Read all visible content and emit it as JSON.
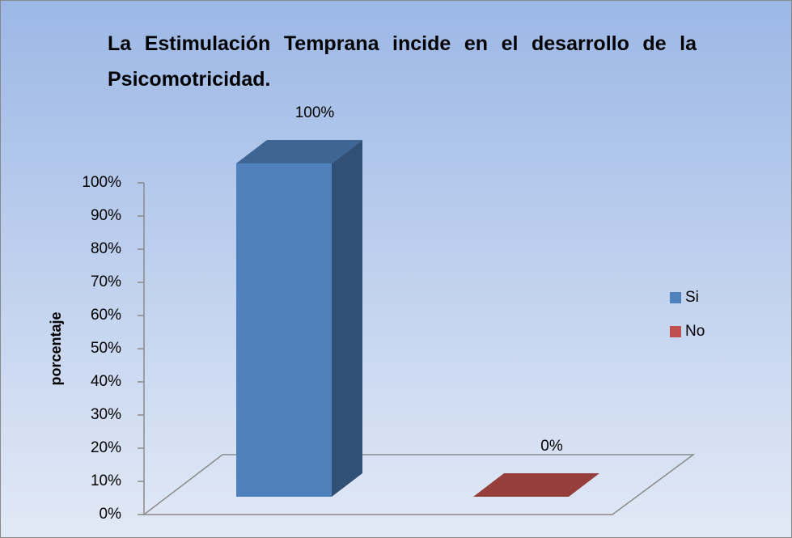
{
  "chart_data": {
    "type": "bar3d",
    "title": "La Estimulación Temprana incide en el desarrollo de la Psicomotricidad.",
    "ylabel": "porcentaje",
    "categories": [
      null
    ],
    "series": [
      {
        "name": "Si",
        "color": "#4f81bd",
        "values": [
          100
        ],
        "value_labels": [
          "100%"
        ]
      },
      {
        "name": "No",
        "color": "#c0504d",
        "values": [
          0
        ],
        "value_labels": [
          "0%"
        ]
      }
    ],
    "ylim": [
      0,
      100
    ],
    "yticks": [
      {
        "value": 0,
        "label": "0%"
      },
      {
        "value": 10,
        "label": "10%"
      },
      {
        "value": 20,
        "label": "20%"
      },
      {
        "value": 30,
        "label": "30%"
      },
      {
        "value": 40,
        "label": "40%"
      },
      {
        "value": 50,
        "label": "50%"
      },
      {
        "value": 60,
        "label": "60%"
      },
      {
        "value": 70,
        "label": "70%"
      },
      {
        "value": 80,
        "label": "80%"
      },
      {
        "value": 90,
        "label": "90%"
      },
      {
        "value": 100,
        "label": "100%"
      }
    ],
    "legend": "right"
  }
}
